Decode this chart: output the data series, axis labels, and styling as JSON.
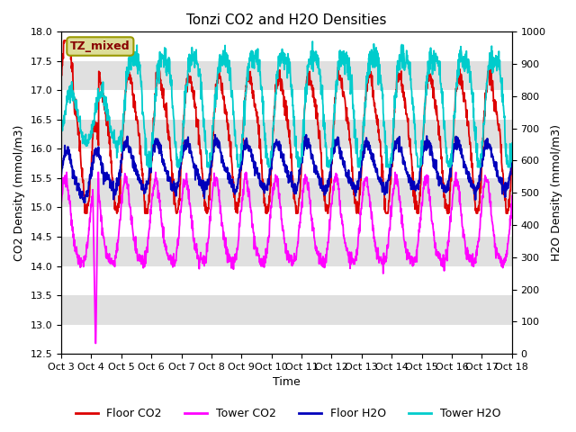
{
  "title": "Tonzi CO2 and H2O Densities",
  "xlabel": "Time",
  "ylabel_left": "CO2 Density (mmol/m3)",
  "ylabel_right": "H2O Density (mmol/m3)",
  "ylim_left": [
    12.5,
    18.0
  ],
  "ylim_right": [
    0,
    1000
  ],
  "yticks_left": [
    12.5,
    13.0,
    13.5,
    14.0,
    14.5,
    15.0,
    15.5,
    16.0,
    16.5,
    17.0,
    17.5,
    18.0
  ],
  "yticks_right": [
    0,
    100,
    200,
    300,
    400,
    500,
    600,
    700,
    800,
    900,
    1000
  ],
  "xtick_labels": [
    "Oct 3",
    "Oct 4",
    "Oct 5",
    "Oct 6",
    "Oct 7",
    "Oct 8",
    "Oct 9",
    "Oct 10",
    "Oct 11",
    "Oct 12",
    "Oct 13",
    "Oct 14",
    "Oct 15",
    "Oct 16",
    "Oct 17",
    "Oct 18"
  ],
  "colors": {
    "floor_co2": "#dd0000",
    "tower_co2": "#ff00ff",
    "floor_h2o": "#0000bb",
    "tower_h2o": "#00cccc"
  },
  "legend_labels": [
    "Floor CO2",
    "Tower CO2",
    "Floor H2O",
    "Tower H2O"
  ],
  "annotation_text": "TZ_mixed",
  "annotation_bg": "#dddd99",
  "annotation_border": "#999900",
  "band_color": "#e0e0e0",
  "n_days": 16,
  "n_points": 1600
}
